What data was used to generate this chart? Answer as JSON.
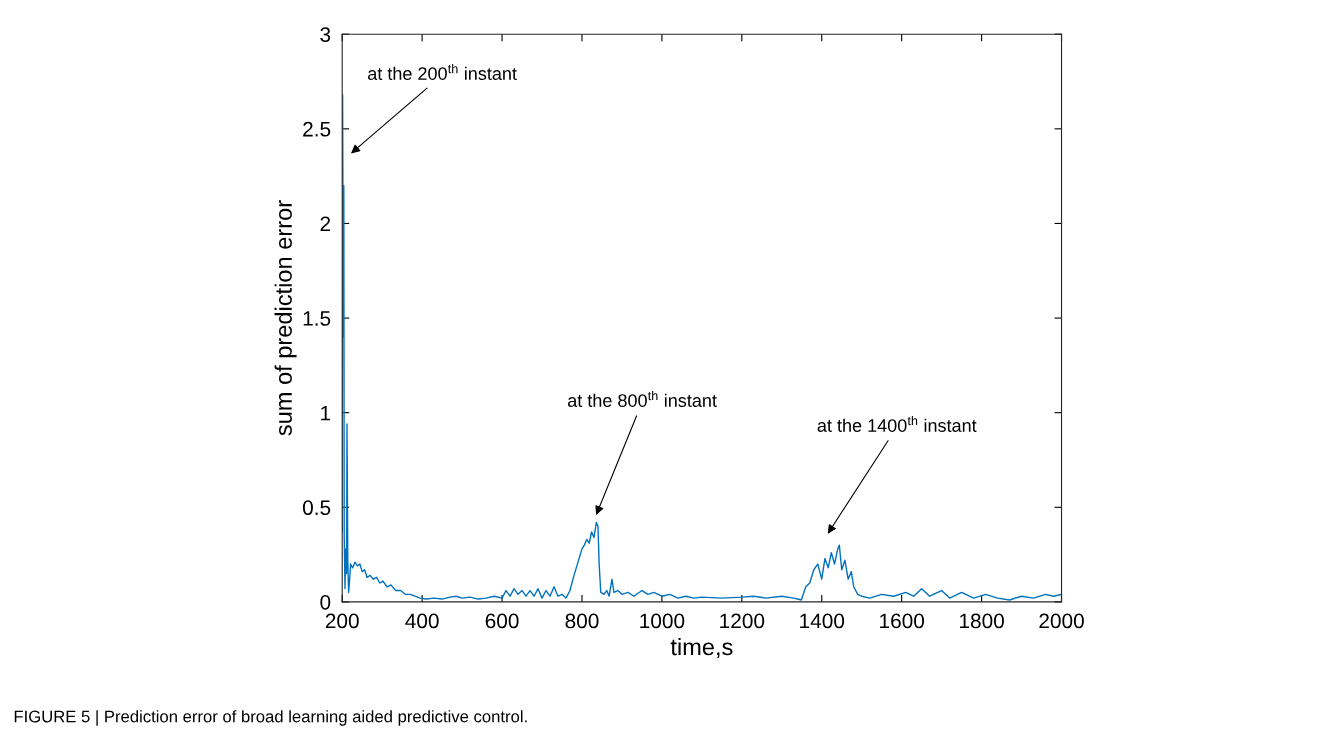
{
  "chart_data": {
    "type": "line",
    "xlabel": "time,s",
    "ylabel": "sum of prediction error",
    "x": [
      200,
      201,
      203,
      204,
      205,
      207,
      209,
      211,
      212,
      214,
      216,
      218,
      221,
      226,
      232,
      238,
      244,
      250,
      256,
      262,
      270,
      278,
      286,
      294,
      302,
      312,
      322,
      334,
      346,
      358,
      370,
      382,
      395,
      410,
      430,
      450,
      470,
      485,
      500,
      520,
      540,
      560,
      580,
      600,
      610,
      620,
      630,
      640,
      650,
      660,
      670,
      680,
      690,
      700,
      710,
      720,
      730,
      740,
      750,
      760,
      770,
      780,
      790,
      800,
      806,
      812,
      818,
      824,
      830,
      836,
      840,
      843,
      847,
      855,
      862,
      868,
      875,
      880,
      890,
      900,
      915,
      930,
      950,
      965,
      980,
      1000,
      1020,
      1040,
      1060,
      1080,
      1100,
      1150,
      1200,
      1230,
      1260,
      1300,
      1330,
      1349,
      1360,
      1370,
      1380,
      1390,
      1400,
      1408,
      1416,
      1424,
      1432,
      1440,
      1444,
      1450,
      1458,
      1466,
      1474,
      1480,
      1490,
      1500,
      1520,
      1550,
      1580,
      1610,
      1630,
      1650,
      1670,
      1700,
      1720,
      1750,
      1780,
      1810,
      1840,
      1870,
      1900,
      1930,
      1960,
      1980,
      2000
    ],
    "series": [
      {
        "color": "#0072bd",
        "values": [
          0.37,
          2.68,
          1.4,
          2.2,
          0.35,
          0.07,
          0.28,
          0.15,
          0.94,
          0.22,
          0.05,
          0.1,
          0.2,
          0.18,
          0.21,
          0.19,
          0.2,
          0.16,
          0.17,
          0.13,
          0.14,
          0.12,
          0.13,
          0.1,
          0.11,
          0.08,
          0.09,
          0.06,
          0.06,
          0.04,
          0.04,
          0.03,
          0.02,
          0.015,
          0.02,
          0.015,
          0.025,
          0.03,
          0.02,
          0.025,
          0.015,
          0.02,
          0.03,
          0.02,
          0.06,
          0.03,
          0.07,
          0.04,
          0.06,
          0.03,
          0.06,
          0.03,
          0.07,
          0.02,
          0.06,
          0.03,
          0.08,
          0.03,
          0.04,
          0.02,
          0.06,
          0.14,
          0.21,
          0.28,
          0.3,
          0.33,
          0.31,
          0.37,
          0.34,
          0.42,
          0.4,
          0.2,
          0.05,
          0.04,
          0.06,
          0.03,
          0.12,
          0.05,
          0.06,
          0.04,
          0.05,
          0.03,
          0.06,
          0.04,
          0.05,
          0.03,
          0.04,
          0.02,
          0.03,
          0.02,
          0.025,
          0.02,
          0.025,
          0.03,
          0.02,
          0.03,
          0.02,
          0.01,
          0.08,
          0.1,
          0.17,
          0.2,
          0.12,
          0.23,
          0.18,
          0.26,
          0.2,
          0.28,
          0.3,
          0.17,
          0.22,
          0.12,
          0.16,
          0.08,
          0.04,
          0.03,
          0.02,
          0.04,
          0.03,
          0.05,
          0.03,
          0.07,
          0.03,
          0.06,
          0.02,
          0.05,
          0.02,
          0.04,
          0.02,
          0.01,
          0.03,
          0.02,
          0.04,
          0.03,
          0.04
        ]
      }
    ],
    "xlim": [
      200,
      2000
    ],
    "ylim": [
      0,
      3
    ],
    "xticks": [
      200,
      400,
      600,
      800,
      1000,
      1200,
      1400,
      1600,
      1800,
      2000
    ],
    "yticks": [
      0,
      0.5,
      1,
      1.5,
      2,
      2.5,
      3
    ],
    "annotations": [
      "at the 200$^{th}$ instant",
      "at the 800$^{th}$ instant",
      "at the 1400$^{th}$ instant",
      "FIGURE 5 | Prediction error of broad learning aided predictive control."
    ]
  }
}
